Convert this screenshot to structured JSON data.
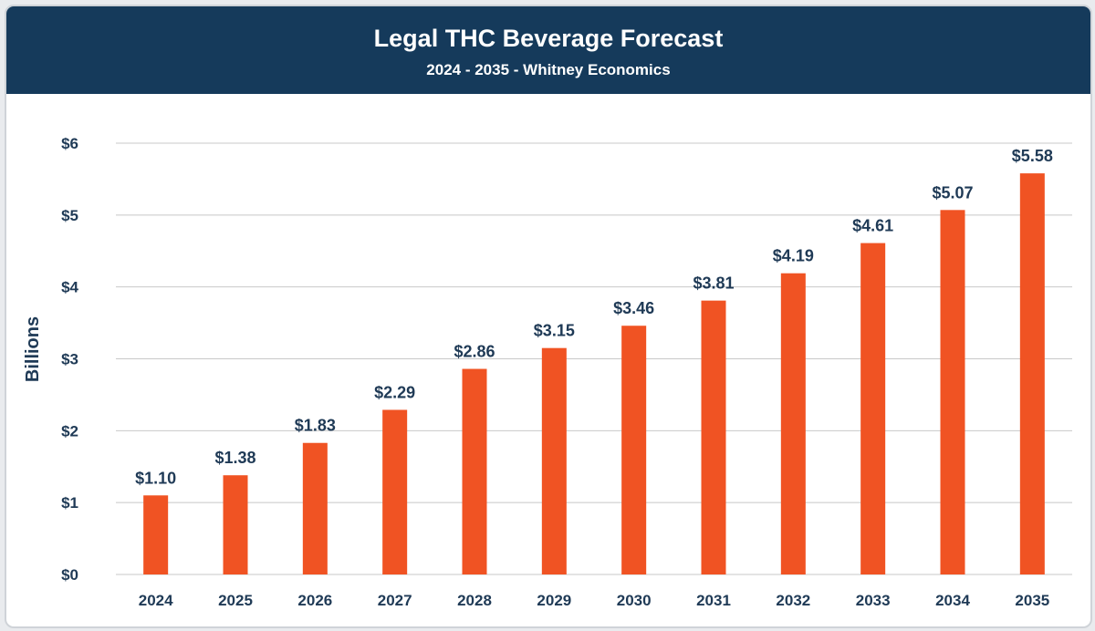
{
  "chart_data": {
    "type": "bar",
    "title": "Legal THC Beverage Forecast",
    "subtitle": "2024 - 2035 - Whitney Economics",
    "ylabel": "Billions",
    "xlabel": "",
    "categories": [
      "2024",
      "2025",
      "2026",
      "2027",
      "2028",
      "2029",
      "2030",
      "2031",
      "2032",
      "2033",
      "2034",
      "2035"
    ],
    "values": [
      1.1,
      1.38,
      1.83,
      2.29,
      2.86,
      3.15,
      3.46,
      3.81,
      4.19,
      4.61,
      5.07,
      5.58
    ],
    "data_labels": [
      "$1.10",
      "$1.38",
      "$1.83",
      "$2.29",
      "$2.86",
      "$3.15",
      "$3.46",
      "$3.81",
      "$4.19",
      "$4.61",
      "$5.07",
      "$5.58"
    ],
    "ylim": [
      0,
      6
    ],
    "y_ticks": [
      0,
      1,
      2,
      3,
      4,
      5,
      6
    ],
    "y_tick_labels": [
      "$0",
      "$1",
      "$2",
      "$3",
      "$4",
      "$5",
      "$6"
    ],
    "grid": true,
    "legend": "none",
    "colors": {
      "bar": "#f05323",
      "header": "#153a5b",
      "text": "#1f3a56",
      "grid": "#c8c8c8"
    }
  }
}
